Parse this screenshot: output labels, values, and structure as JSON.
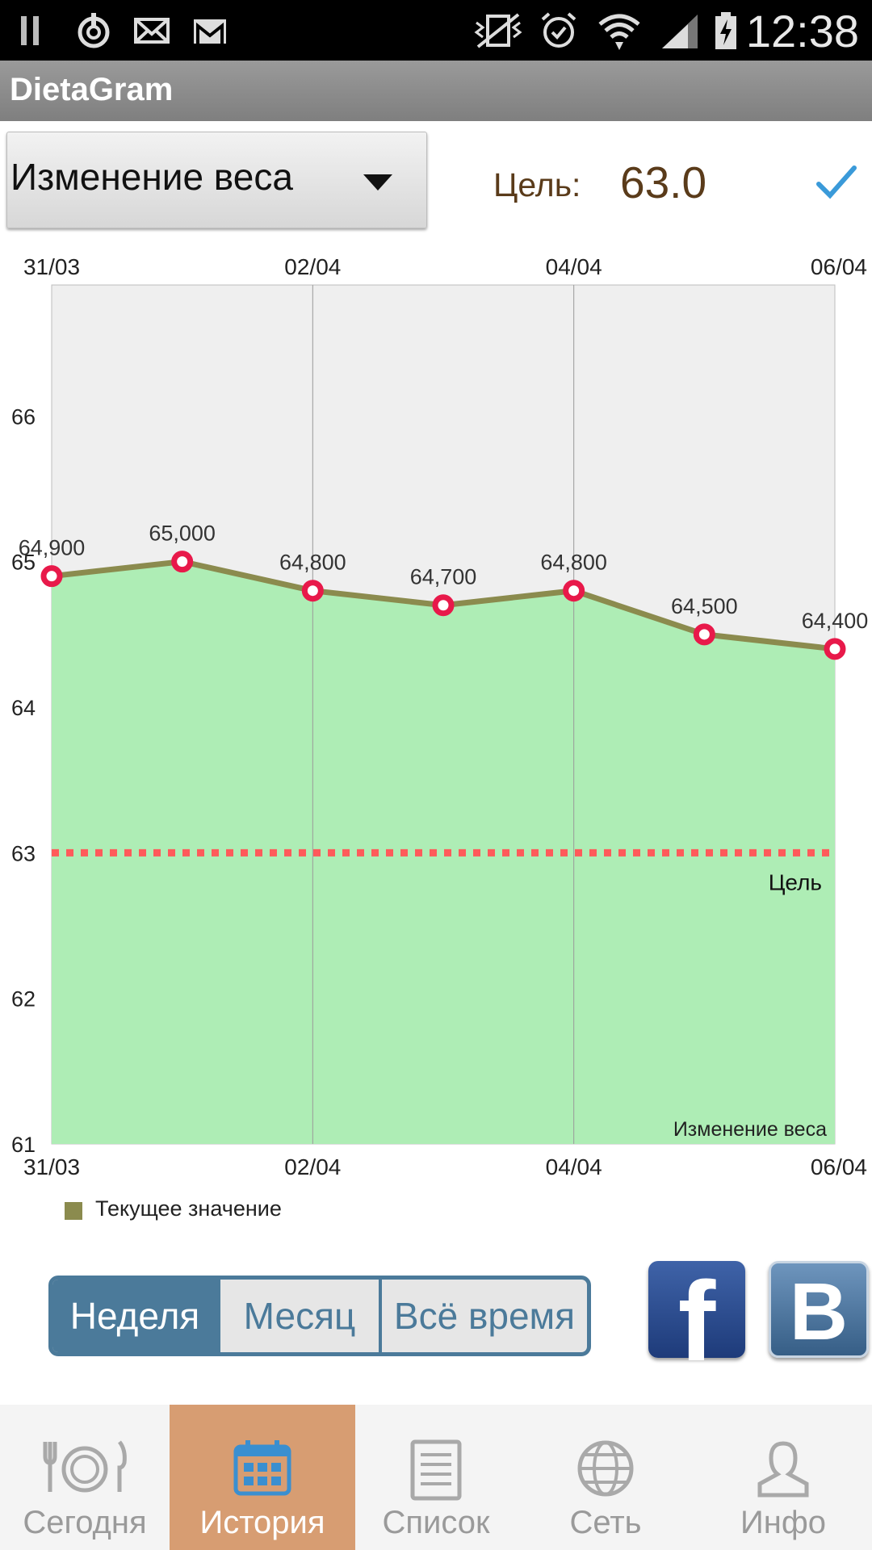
{
  "status_bar": {
    "time": "12:38",
    "icons": [
      "pause-icon",
      "power-icon",
      "mail-icon",
      "gmail-icon",
      "vibrate-icon",
      "alarm-icon",
      "wifi-icon",
      "signal-icon",
      "battery-charging-icon"
    ]
  },
  "app": {
    "title": "DietaGram"
  },
  "controls": {
    "chart_selector": "Изменение веса",
    "goal_label": "Цель:",
    "goal_value": "63.0"
  },
  "chart_data": {
    "type": "area",
    "title": "Изменение веса",
    "x": [
      "31/03",
      "01/04",
      "02/04",
      "03/04",
      "04/04",
      "05/04",
      "06/04"
    ],
    "x_tick_labels": [
      "31/03",
      "02/04",
      "04/04",
      "06/04"
    ],
    "series": [
      {
        "name": "Текущее значение",
        "values": [
          64.9,
          65.0,
          64.8,
          64.7,
          64.8,
          64.5,
          64.4
        ],
        "labels": [
          "64,900",
          "65,000",
          "64,800",
          "64,700",
          "64,800",
          "64,500",
          "64,400"
        ]
      }
    ],
    "goal": {
      "label": "Цель",
      "value": 63
    },
    "ylim": [
      61,
      66.9
    ],
    "y_ticks": [
      61,
      62,
      63,
      64,
      65,
      66
    ],
    "legend_position": "bottom-left",
    "grid": "vertical",
    "colors": {
      "fill": "#aeedb5",
      "line": "#8b8b4e",
      "marker": "#e8194a",
      "goal": "#ff5a5a",
      "plot_bg": "#efefef"
    }
  },
  "period_tabs": {
    "items": [
      "Неделя",
      "Месяц",
      "Всё время"
    ],
    "active": 0
  },
  "social": {
    "facebook": "f",
    "vk": "B"
  },
  "bottom_nav": {
    "items": [
      {
        "label": "Сегодня",
        "icon": "plate-cutlery-icon"
      },
      {
        "label": "История",
        "icon": "calendar-icon"
      },
      {
        "label": "Список",
        "icon": "list-icon"
      },
      {
        "label": "Сеть",
        "icon": "globe-icon"
      },
      {
        "label": "Инфо",
        "icon": "user-icon"
      }
    ],
    "active": 1
  }
}
